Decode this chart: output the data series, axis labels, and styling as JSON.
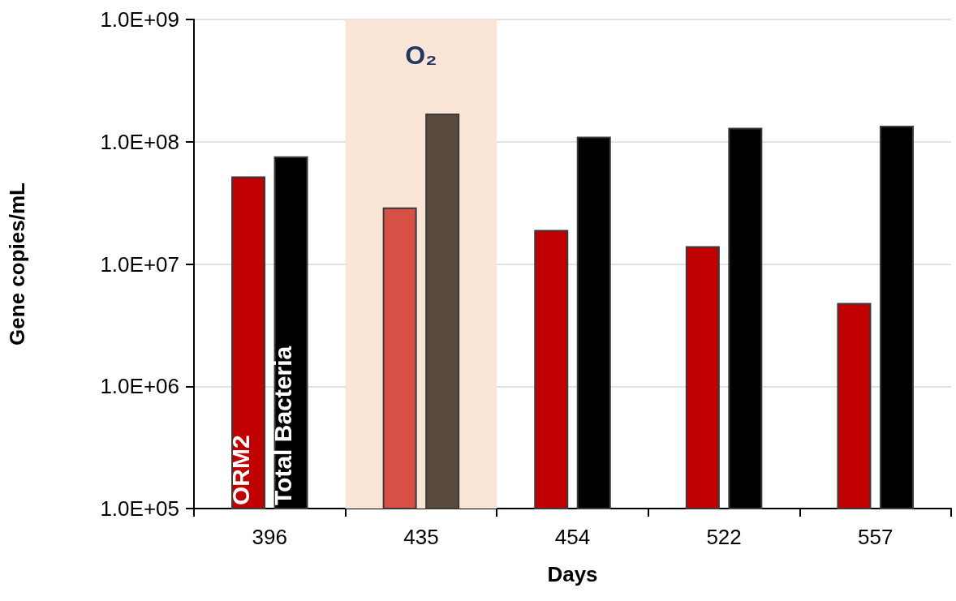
{
  "chart_data": {
    "type": "bar",
    "xlabel": "Days",
    "ylabel": "Gene copies/mL",
    "log": "y",
    "grid": "y",
    "legend": false,
    "categories": [
      "396",
      "435",
      "454",
      "522",
      "557"
    ],
    "ylim": [
      100000,
      1000000000
    ],
    "yticks": [
      {
        "value": 100000,
        "label": "1.0E+05"
      },
      {
        "value": 1000000,
        "label": "1.0E+06"
      },
      {
        "value": 10000000,
        "label": "1.0E+07"
      },
      {
        "value": 100000000,
        "label": "1.0E+08"
      },
      {
        "value": 1000000000,
        "label": "1.0E+09"
      }
    ],
    "series": [
      {
        "name": "ORM2",
        "colors": [
          "#c00000",
          "#d65046",
          "#c00000",
          "#c00000",
          "#c00000"
        ],
        "values": [
          52000000,
          29000000,
          19000000,
          14000000,
          4800000
        ]
      },
      {
        "name": "Total Bacteria",
        "colors": [
          "#000000",
          "#5c4a3f",
          "#000000",
          "#000000",
          "#000000"
        ],
        "values": [
          76000000,
          170000000,
          110000000,
          130000000,
          135000000
        ]
      }
    ],
    "bands": [
      {
        "axis": "x",
        "from": "435",
        "to": "435",
        "label": "O₂",
        "color": "#fbe5d6"
      }
    ]
  }
}
